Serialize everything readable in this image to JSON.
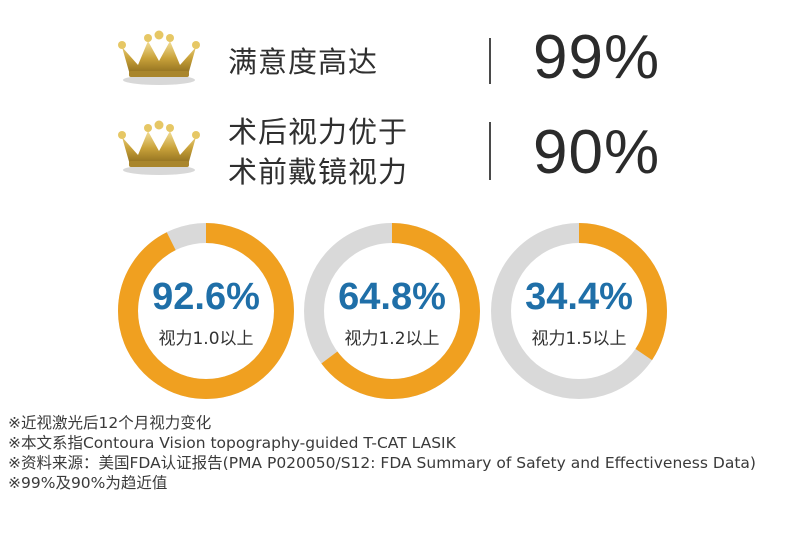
{
  "colors": {
    "ring_fill": "#f0a020",
    "ring_track": "#d9d9d9",
    "percent_text": "#1f6fa8",
    "crown_gold": "#c9a23a"
  },
  "stats": [
    {
      "icon": "crown-icon",
      "label_lines": [
        "满意度高达"
      ],
      "value": "99%"
    },
    {
      "icon": "crown-icon",
      "label_lines": [
        "术后视力优于",
        "术前戴镜视力"
      ],
      "value": "90%"
    }
  ],
  "rings": [
    {
      "percent_text": "92.6%",
      "percent": 92.6,
      "caption": "视力1.0以上"
    },
    {
      "percent_text": "64.8%",
      "percent": 64.8,
      "caption": "视力1.2以上"
    },
    {
      "percent_text": "34.4%",
      "percent": 34.4,
      "caption": "视力1.5以上"
    }
  ],
  "notes": [
    "※近视激光后12个月视力变化",
    "※本文系指Contoura Vision topography-guided T-CAT LASIK",
    "※资料来源：美国FDA认证报告(PMA P020050/S12: FDA Summary of Safety and Effectiveness Data)",
    "※99%及90%为趋近值"
  ]
}
